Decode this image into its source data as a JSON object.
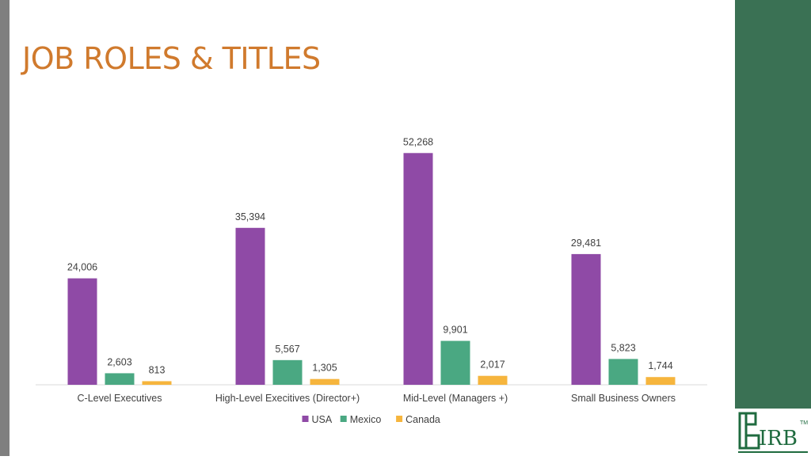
{
  "slide": {
    "title": "JOB ROLES & TITLES",
    "accent_color": "#d07a2d",
    "side_panel_color": "#3a7154"
  },
  "logo": {
    "text": "IRB",
    "mark": "TM",
    "icon": "irb-logo-icon"
  },
  "chart_data": {
    "type": "bar",
    "title": "",
    "xlabel": "",
    "ylabel": "",
    "categories": [
      "C-Level Executives",
      "High-Level Execitives (Director+)",
      "Mid-Level (Managers +)",
      "Small Business Owners"
    ],
    "series": [
      {
        "name": "USA",
        "color": "#8f4aa6",
        "values": [
          24006,
          35394,
          52268,
          29481
        ]
      },
      {
        "name": "Mexico",
        "color": "#4aa882",
        "values": [
          2603,
          5567,
          9901,
          5823
        ]
      },
      {
        "name": "Canada",
        "color": "#f6b53d",
        "values": [
          813,
          1305,
          2017,
          1744
        ]
      }
    ],
    "ylim": [
      0,
      55000
    ],
    "grid": false,
    "legend_position": "bottom",
    "data_labels": true
  }
}
